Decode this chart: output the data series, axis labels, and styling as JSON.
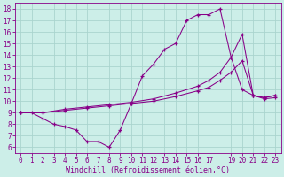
{
  "xlabel": "Windchill (Refroidissement éolien,°C)",
  "bg_color": "#cceee8",
  "grid_color": "#aad4ce",
  "line_color": "#880088",
  "spine_color": "#880088",
  "xlim": [
    -0.5,
    23.5
  ],
  "ylim": [
    5.5,
    18.5
  ],
  "xticks": [
    0,
    1,
    2,
    3,
    4,
    5,
    6,
    7,
    8,
    9,
    10,
    11,
    12,
    13,
    14,
    15,
    16,
    17,
    19,
    20,
    21,
    22,
    23
  ],
  "yticks": [
    6,
    7,
    8,
    9,
    10,
    11,
    12,
    13,
    14,
    15,
    16,
    17,
    18
  ],
  "tick_fontsize": 5.5,
  "xlabel_fontsize": 6.0,
  "series1": [
    [
      0,
      9.0
    ],
    [
      1,
      9.0
    ],
    [
      2,
      8.5
    ],
    [
      3,
      8.0
    ],
    [
      4,
      7.8
    ],
    [
      5,
      7.5
    ],
    [
      6,
      6.5
    ],
    [
      7,
      6.5
    ],
    [
      8,
      6.0
    ],
    [
      9,
      7.5
    ],
    [
      10,
      9.8
    ],
    [
      11,
      12.2
    ],
    [
      12,
      13.2
    ],
    [
      13,
      14.5
    ],
    [
      14,
      15.0
    ],
    [
      15,
      17.0
    ],
    [
      16,
      17.5
    ],
    [
      17,
      17.5
    ],
    [
      18,
      18.0
    ],
    [
      19,
      13.8
    ],
    [
      20,
      11.0
    ],
    [
      21,
      10.5
    ],
    [
      22,
      10.2
    ],
    [
      23,
      10.3
    ]
  ],
  "series2": [
    [
      0,
      9.0
    ],
    [
      2,
      9.0
    ],
    [
      4,
      9.3
    ],
    [
      6,
      9.5
    ],
    [
      8,
      9.7
    ],
    [
      10,
      9.9
    ],
    [
      12,
      10.2
    ],
    [
      14,
      10.7
    ],
    [
      16,
      11.3
    ],
    [
      17,
      11.8
    ],
    [
      18,
      12.5
    ],
    [
      19,
      13.8
    ],
    [
      20,
      15.8
    ],
    [
      21,
      10.5
    ],
    [
      22,
      10.3
    ],
    [
      23,
      10.5
    ]
  ],
  "series3": [
    [
      0,
      9.0
    ],
    [
      2,
      9.0
    ],
    [
      4,
      9.2
    ],
    [
      6,
      9.4
    ],
    [
      8,
      9.6
    ],
    [
      10,
      9.8
    ],
    [
      12,
      10.0
    ],
    [
      14,
      10.4
    ],
    [
      16,
      10.9
    ],
    [
      17,
      11.2
    ],
    [
      18,
      11.8
    ],
    [
      19,
      12.5
    ],
    [
      20,
      13.5
    ],
    [
      21,
      10.5
    ],
    [
      22,
      10.3
    ],
    [
      23,
      10.5
    ]
  ]
}
